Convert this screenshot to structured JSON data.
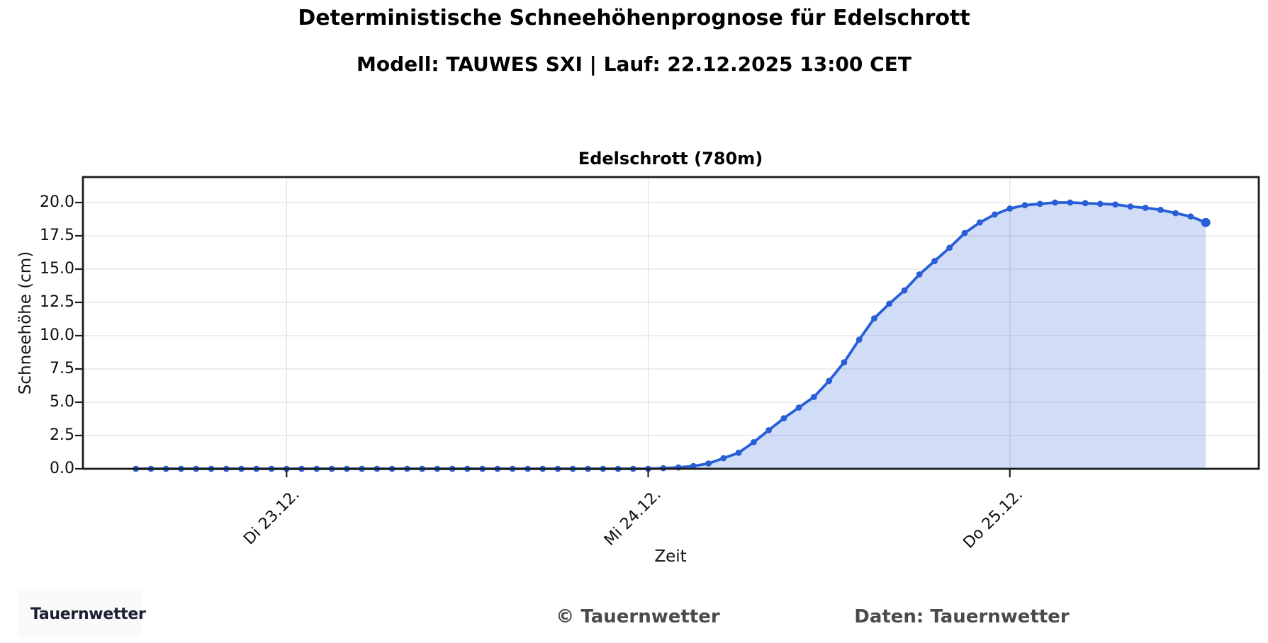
{
  "header": {
    "title": "Deterministische Schneehöhenprognose für Edelschrott",
    "subtitle": "Modell: TAUWES SXI | Lauf: 22.12.2025 13:00 CET"
  },
  "chart_data": {
    "type": "area",
    "title": "Edelschrott (780m)",
    "xlabel": "Zeit",
    "ylabel": "Schneehöhe (cm)",
    "x_start": "22.12.2025 14:00 CET",
    "x_step_hours": 1,
    "n_points": 72,
    "ylim": [
      0,
      21.9
    ],
    "yticks": [
      0.0,
      2.5,
      5.0,
      7.5,
      10.0,
      12.5,
      15.0,
      17.5,
      20.0
    ],
    "xticks": [
      {
        "index": 10,
        "label": "Di 23.12."
      },
      {
        "index": 34,
        "label": "Mi 24.12."
      },
      {
        "index": 58,
        "label": "Do 25.12."
      }
    ],
    "grid": true,
    "legend": "none",
    "series": [
      {
        "name": "Schneehöhe (cm)",
        "values": [
          0,
          0,
          0,
          0,
          0,
          0,
          0,
          0,
          0,
          0,
          0,
          0,
          0,
          0,
          0,
          0,
          0,
          0,
          0,
          0,
          0,
          0,
          0,
          0,
          0,
          0,
          0,
          0,
          0,
          0,
          0,
          0,
          0,
          0,
          0,
          0.05,
          0.1,
          0.2,
          0.4,
          0.8,
          1.2,
          2.0,
          2.9,
          3.8,
          4.6,
          5.4,
          6.6,
          8.0,
          9.7,
          11.3,
          12.4,
          13.4,
          14.6,
          15.6,
          16.6,
          17.7,
          18.5,
          19.1,
          19.55,
          19.8,
          19.9,
          20.0,
          20.0,
          19.95,
          19.9,
          19.85,
          19.7,
          19.6,
          19.45,
          19.2,
          18.95,
          18.5
        ]
      }
    ],
    "colors": {
      "line": "#285fd7",
      "fill": "rgba(40,95,215,0.21)",
      "grid": "#e2e2e2",
      "spine": "#1c1c1c"
    }
  },
  "footer": {
    "copyright": "© Tauernwetter",
    "source": "Daten: Tauernwetter"
  },
  "logo": {
    "text": "Tauernwetter",
    "accent": "#2a6df0"
  }
}
